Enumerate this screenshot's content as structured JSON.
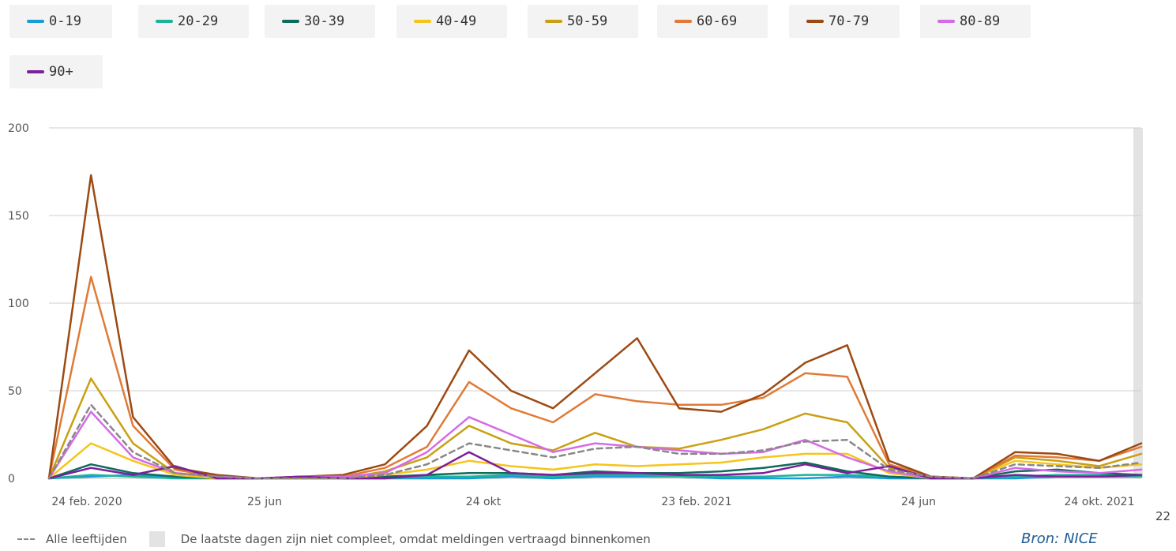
{
  "legend": [
    {
      "label": "0-19",
      "color": "#1a9ad8"
    },
    {
      "label": "20-29",
      "color": "#1db39a"
    },
    {
      "label": "30-39",
      "color": "#0f6b5c"
    },
    {
      "label": "40-49",
      "color": "#f5c51b"
    },
    {
      "label": "50-59",
      "color": "#c9a012"
    },
    {
      "label": "60-69",
      "color": "#e07a36"
    },
    {
      "label": "70-79",
      "color": "#9c4a12"
    },
    {
      "label": "80-89",
      "color": "#d56be6"
    },
    {
      "label": "90+",
      "color": "#7b1f9a"
    }
  ],
  "footer": {
    "all_ages_label": "Alle leeftijden",
    "incomplete_note": "De laatste dagen zijn niet compleet, omdat meldingen vertraagd binnenkomen",
    "source": "Bron: NICE",
    "page_number": "22"
  },
  "chart_data": {
    "type": "line",
    "y_ticks": [
      "0",
      "50",
      "100",
      "150",
      "200"
    ],
    "ylim": [
      0,
      200
    ],
    "x_tick_labels": [
      "24 feb. 2020",
      "25 jun",
      "24 okt",
      "23 feb. 2021",
      "24 jun",
      "24 okt. 2021"
    ],
    "x": [
      0,
      4,
      8,
      12,
      16,
      20,
      24,
      28,
      32,
      36,
      40,
      44,
      48,
      52,
      56,
      60,
      64,
      68,
      72,
      76,
      80,
      84,
      88,
      92,
      96,
      100,
      104
    ],
    "grid": "horizontal",
    "legend_position": "top",
    "series": [
      {
        "name": "0-19",
        "color": "#1a9ad8",
        "dashed": false,
        "values": [
          0,
          1,
          2,
          1,
          0,
          0,
          0,
          0,
          0,
          0,
          0,
          1,
          0,
          1,
          1,
          1,
          0,
          0,
          0,
          1,
          0,
          0,
          0,
          0,
          1,
          1,
          1
        ]
      },
      {
        "name": "20-29",
        "color": "#1db39a",
        "dashed": false,
        "values": [
          0,
          2,
          1,
          0,
          0,
          0,
          0,
          0,
          0,
          1,
          1,
          2,
          1,
          2,
          2,
          1,
          1,
          1,
          2,
          2,
          1,
          0,
          0,
          1,
          2,
          2,
          1
        ]
      },
      {
        "name": "30-39",
        "color": "#0f6b5c",
        "dashed": false,
        "values": [
          0,
          8,
          3,
          1,
          0,
          0,
          0,
          0,
          1,
          2,
          3,
          3,
          2,
          4,
          3,
          3,
          4,
          6,
          9,
          4,
          1,
          0,
          0,
          4,
          5,
          3,
          2
        ]
      },
      {
        "name": "40-49",
        "color": "#f5c51b",
        "dashed": false,
        "values": [
          0,
          20,
          10,
          2,
          0,
          0,
          0,
          0,
          2,
          5,
          10,
          7,
          5,
          8,
          7,
          8,
          9,
          12,
          14,
          14,
          3,
          0,
          0,
          10,
          8,
          6,
          8
        ]
      },
      {
        "name": "50-59",
        "color": "#c9a012",
        "dashed": false,
        "values": [
          0,
          57,
          20,
          3,
          1,
          0,
          0,
          0,
          4,
          12,
          30,
          20,
          16,
          26,
          18,
          17,
          22,
          28,
          37,
          32,
          6,
          1,
          0,
          12,
          10,
          7,
          14
        ]
      },
      {
        "name": "60-69",
        "color": "#e07a36",
        "dashed": false,
        "values": [
          0,
          115,
          30,
          5,
          1,
          0,
          1,
          1,
          6,
          18,
          55,
          40,
          32,
          48,
          44,
          42,
          42,
          46,
          60,
          58,
          8,
          1,
          0,
          13,
          12,
          10,
          18
        ]
      },
      {
        "name": "70-79",
        "color": "#9c4a12",
        "dashed": false,
        "values": [
          0,
          173,
          35,
          6,
          2,
          0,
          1,
          2,
          8,
          30,
          73,
          50,
          40,
          60,
          80,
          40,
          38,
          48,
          66,
          76,
          10,
          1,
          0,
          15,
          14,
          10,
          20
        ]
      },
      {
        "name": "80-89",
        "color": "#d56be6",
        "dashed": false,
        "values": [
          0,
          38,
          12,
          3,
          1,
          0,
          1,
          1,
          3,
          15,
          35,
          25,
          15,
          20,
          18,
          16,
          14,
          15,
          22,
          12,
          4,
          0,
          0,
          6,
          4,
          3,
          5
        ]
      },
      {
        "name": "90+",
        "color": "#7b1f9a",
        "dashed": false,
        "values": [
          0,
          6,
          2,
          7,
          0,
          0,
          1,
          0,
          0,
          2,
          15,
          3,
          2,
          3,
          3,
          2,
          2,
          3,
          8,
          3,
          7,
          0,
          0,
          2,
          1,
          1,
          2
        ]
      },
      {
        "name": "Alle leeftijden",
        "color": "#888888",
        "dashed": true,
        "values": [
          0,
          42,
          15,
          3,
          1,
          0,
          0,
          0,
          2,
          8,
          20,
          16,
          12,
          17,
          18,
          14,
          14,
          16,
          21,
          22,
          5,
          1,
          0,
          8,
          7,
          6,
          9
        ]
      }
    ]
  }
}
